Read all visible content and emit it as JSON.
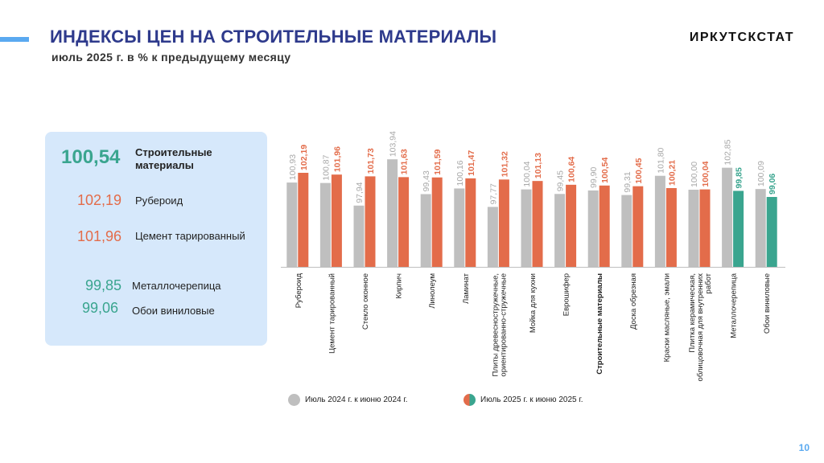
{
  "header": {
    "title": "ИНДЕКСЫ ЦЕН НА СТРОИТЕЛЬНЫЕ МАТЕРИАЛЫ",
    "subtitle": "июль 2025 г. в % к предыдущему месяцу",
    "brand": "ИРКУТСКСТАТ"
  },
  "summary": {
    "items": [
      {
        "value": "100,54",
        "label": "Строительные материалы",
        "color": "#3aa58f"
      },
      {
        "value": "102,19",
        "label": "Рубероид",
        "color": "#e36c4a"
      },
      {
        "value": "101,96",
        "label": "Цемент тарированный",
        "color": "#e36c4a"
      },
      {
        "value": "99,85",
        "label": "Металлочерепица",
        "color": "#3aa58f"
      },
      {
        "value": "99,06",
        "label": "Обои виниловые",
        "color": "#3aa58f"
      }
    ]
  },
  "colors": {
    "prev_year": "#bfbfbf",
    "increase": "#e36c4a",
    "decrease": "#3aa58f",
    "title": "#2e3a8c",
    "accent": "#5aa9f0"
  },
  "chart_data": {
    "type": "bar",
    "categories": [
      "Рубероид",
      "Цемент тарированный",
      "Стекло оконное",
      "Кирпич",
      "Линолеум",
      "Ламинат",
      "Плиты древесностружечные, ориентированно-стружечные",
      "Мойка для кухни",
      "Еврошифер",
      "Строительные материалы",
      "Доска обрезная",
      "Краски масляные, эмали",
      "Плитка керамическая, облицовочная для внутренних работ",
      "Металлочерепица",
      "Обои виниловые"
    ],
    "category_lines": [
      [
        "Рубероид"
      ],
      [
        "Цемент тарированный"
      ],
      [
        "Стекло оконное"
      ],
      [
        "Кирпич"
      ],
      [
        "Линолеум"
      ],
      [
        "Ламинат"
      ],
      [
        "Плиты древесностружечные,",
        "ориентированно-стружечные"
      ],
      [
        "Мойка для кухни"
      ],
      [
        "Еврошифер"
      ],
      [
        "Строительные материалы"
      ],
      [
        "Доска обрезная"
      ],
      [
        "Краски масляные, эмали"
      ],
      [
        "Плитка керамическая,",
        "облицовочная для внутренних",
        "работ"
      ],
      [
        "Металлочерепица"
      ],
      [
        "Обои виниловые"
      ]
    ],
    "highlight_category": "Строительные материалы",
    "series": [
      {
        "name": "Июль 2024 г. к июню 2024 г.",
        "values": [
          100.93,
          100.87,
          97.94,
          103.94,
          99.43,
          100.16,
          97.77,
          100.04,
          99.45,
          99.9,
          99.31,
          101.8,
          100.0,
          102.85,
          100.09
        ],
        "labels": [
          "100,93",
          "100,87",
          "97,94",
          "103,94",
          "99,43",
          "100,16",
          "97,77",
          "100,04",
          "99,45",
          "99,90",
          "99,31",
          "101,80",
          "100,00",
          "102,85",
          "100,09"
        ]
      },
      {
        "name": "Июль 2025 г. к июню 2025 г.",
        "values": [
          102.19,
          101.96,
          101.73,
          101.63,
          101.59,
          101.47,
          101.32,
          101.13,
          100.64,
          100.54,
          100.45,
          100.21,
          100.04,
          99.85,
          99.06
        ],
        "labels": [
          "102,19",
          "101,96",
          "101,73",
          "101,63",
          "101,59",
          "101,47",
          "101,32",
          "101,13",
          "100,64",
          "100,54",
          "100,45",
          "100,21",
          "100,04",
          "99,85",
          "99,06"
        ]
      }
    ],
    "legend_position": "bottom",
    "grid": false
  },
  "page_number": "10"
}
